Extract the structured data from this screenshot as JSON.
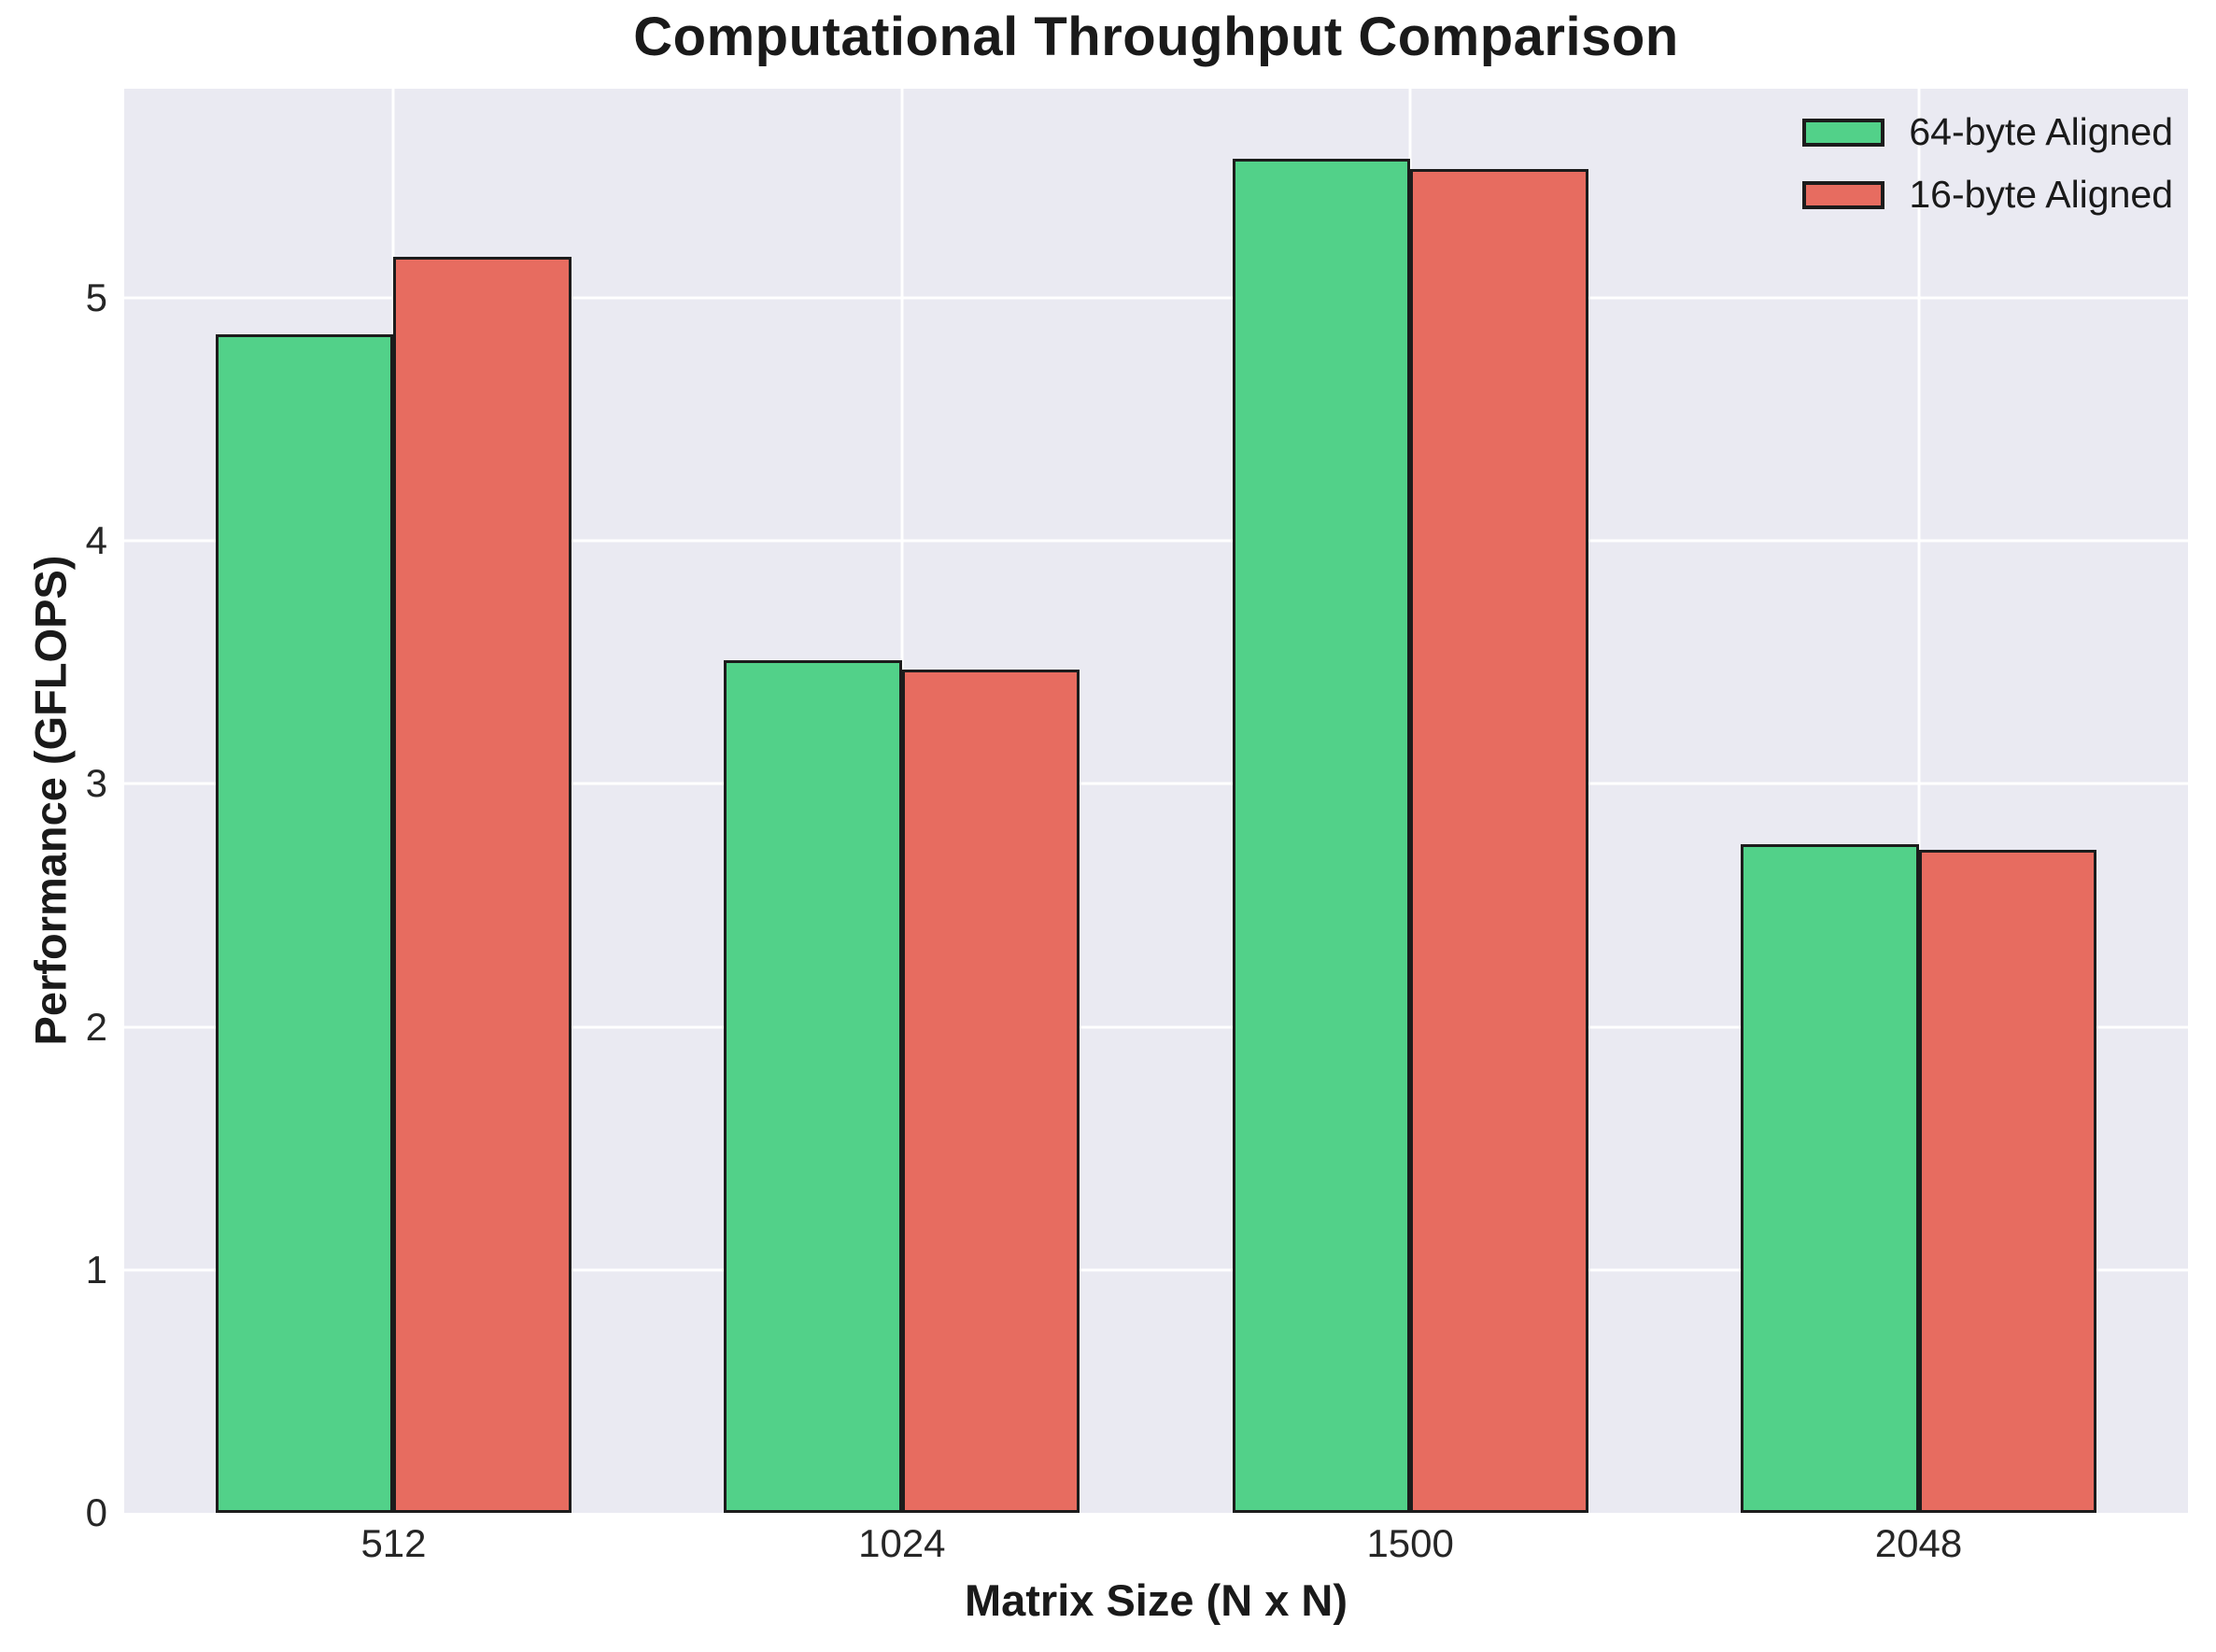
{
  "chart_data": {
    "type": "bar",
    "title": "Computational Throughput Comparison",
    "xlabel": "Matrix Size (N x N)",
    "ylabel": "Performance (GFLOPS)",
    "categories": [
      "512",
      "1024",
      "1500",
      "2048"
    ],
    "series": [
      {
        "name": "64-byte Aligned",
        "color": "#52d189",
        "values": [
          4.85,
          3.51,
          5.57,
          2.75
        ]
      },
      {
        "name": "16-byte Aligned",
        "color": "#e76c60",
        "values": [
          5.17,
          3.47,
          5.53,
          2.73
        ]
      }
    ],
    "yticks": [
      0,
      1,
      2,
      3,
      4,
      5
    ],
    "ylim": [
      0,
      5.86
    ],
    "xlim": [
      -0.53,
      3.53
    ],
    "bar_width": 0.35,
    "grid": true,
    "legend_position": "upper right",
    "colors": {
      "plot_background": "#eaeaf2",
      "figure_background": "#ffffff",
      "gridline": "#ffffff",
      "bar_edge": "#1c1c1c",
      "text": "#262626"
    }
  }
}
